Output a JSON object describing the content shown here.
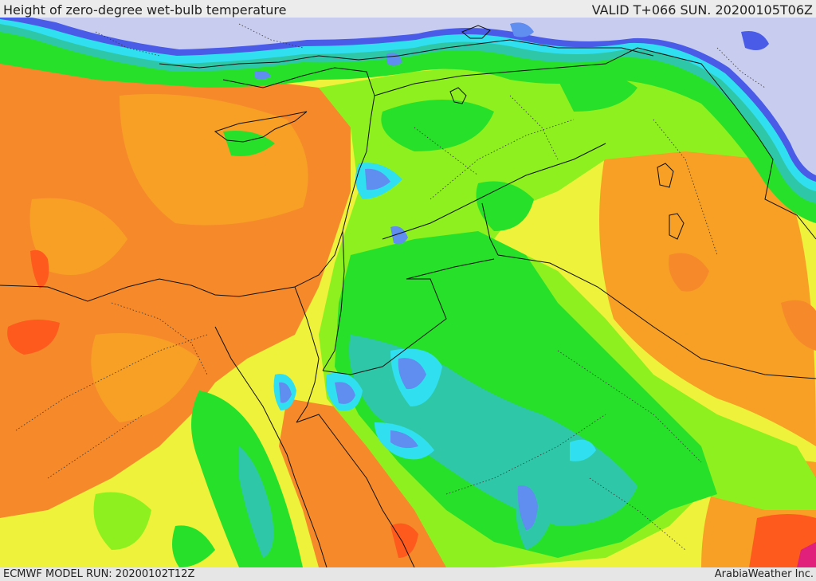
{
  "header": {
    "title": "Height of zero-degree wet-bulb temperature",
    "valid": "VALID T+066 SUN. 20200105T06Z"
  },
  "footer": {
    "model_run": "ECMWF MODEL RUN: 20200102T12Z",
    "credit": "ArabiaWeather Inc."
  },
  "map": {
    "palette": {
      "cold_sea": "#c8cdf0",
      "deep_blue": "#4a5be8",
      "blue": "#5f8df0",
      "cyan": "#30e0f0",
      "teal": "#2ec8a8",
      "green": "#27e02a",
      "light_green": "#8ef01e",
      "yellow": "#eef23a",
      "yellow_orange": "#f2c830",
      "orange": "#f7a025",
      "dark_orange": "#f68a2a",
      "red_orange": "#ff5a1e",
      "magenta": "#e0207a",
      "borders": "#111111"
    }
  }
}
